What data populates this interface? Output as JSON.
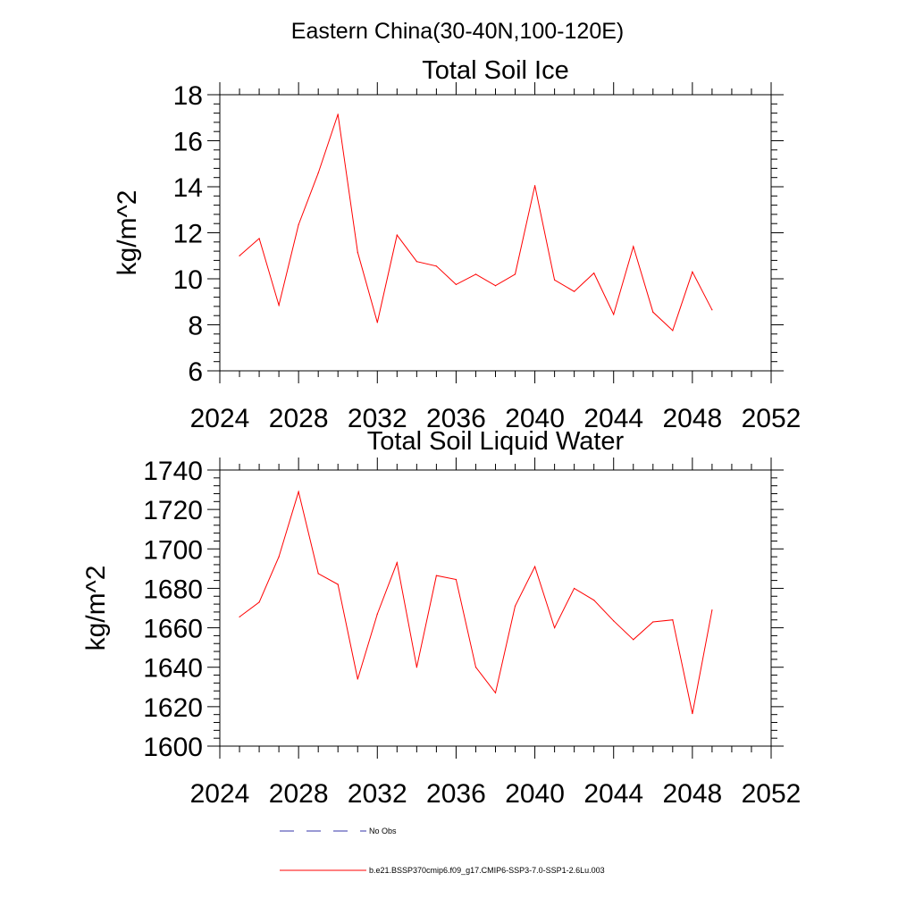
{
  "figure_title": "Eastern China(30-40N,100-120E)",
  "chart_data": [
    {
      "type": "line",
      "title": "Total Soil Ice",
      "ylabel": "kg/m^2",
      "xlabel": "",
      "xlim": [
        2024,
        2052
      ],
      "ylim": [
        6,
        18
      ],
      "xticks": [
        2024,
        2028,
        2032,
        2036,
        2040,
        2044,
        2048,
        2052
      ],
      "yticks": [
        6,
        8,
        10,
        12,
        14,
        16,
        18
      ],
      "grid": false,
      "x": [
        2025,
        2026,
        2027,
        2028,
        2029,
        2030,
        2031,
        2032,
        2033,
        2034,
        2035,
        2036,
        2037,
        2038,
        2039,
        2040,
        2041,
        2042,
        2043,
        2044,
        2045,
        2046,
        2047,
        2048,
        2049
      ],
      "series": [
        {
          "name": "b.e21.BSSP370cmip6.f09_g17.CMIP6-SSP3-7.0-SSP1-2.6Lu.003",
          "color": "#ff0000",
          "values": [
            11.0,
            11.75,
            8.85,
            12.35,
            14.6,
            17.15,
            11.15,
            8.1,
            11.9,
            10.75,
            10.55,
            9.75,
            10.2,
            9.7,
            10.2,
            14.05,
            9.95,
            9.45,
            10.25,
            8.45,
            11.4,
            8.55,
            7.75,
            10.3,
            8.65
          ]
        }
      ]
    },
    {
      "type": "line",
      "title": "Total Soil Liquid Water",
      "ylabel": "kg/m^2",
      "xlabel": "",
      "xlim": [
        2024,
        2052
      ],
      "ylim": [
        1600,
        1740
      ],
      "xticks": [
        2024,
        2028,
        2032,
        2036,
        2040,
        2044,
        2048,
        2052
      ],
      "yticks": [
        1600,
        1620,
        1640,
        1660,
        1680,
        1700,
        1720,
        1740
      ],
      "grid": false,
      "x": [
        2025,
        2026,
        2027,
        2028,
        2029,
        2030,
        2031,
        2032,
        2033,
        2034,
        2035,
        2036,
        2037,
        2038,
        2039,
        2040,
        2041,
        2042,
        2043,
        2044,
        2045,
        2046,
        2047,
        2048,
        2049
      ],
      "series": [
        {
          "name": "b.e21.BSSP370cmip6.f09_g17.CMIP6-SSP3-7.0-SSP1-2.6Lu.003",
          "color": "#ff0000",
          "values": [
            1665.5,
            1673,
            1696,
            1729,
            1687.5,
            1682,
            1634,
            1667,
            1693,
            1640,
            1686.5,
            1684.5,
            1640,
            1627,
            1671,
            1691,
            1660,
            1680,
            1674,
            1663.5,
            1654,
            1663,
            1664,
            1616.5,
            1669
          ]
        }
      ]
    }
  ],
  "legend": [
    {
      "label": "No Obs",
      "color": "#3333aa",
      "style": "dashed"
    },
    {
      "label": "b.e21.BSSP370cmip6.f09_g17.CMIP6-SSP3-7.0-SSP1-2.6Lu.003",
      "color": "#ff0000",
      "style": "solid"
    }
  ]
}
